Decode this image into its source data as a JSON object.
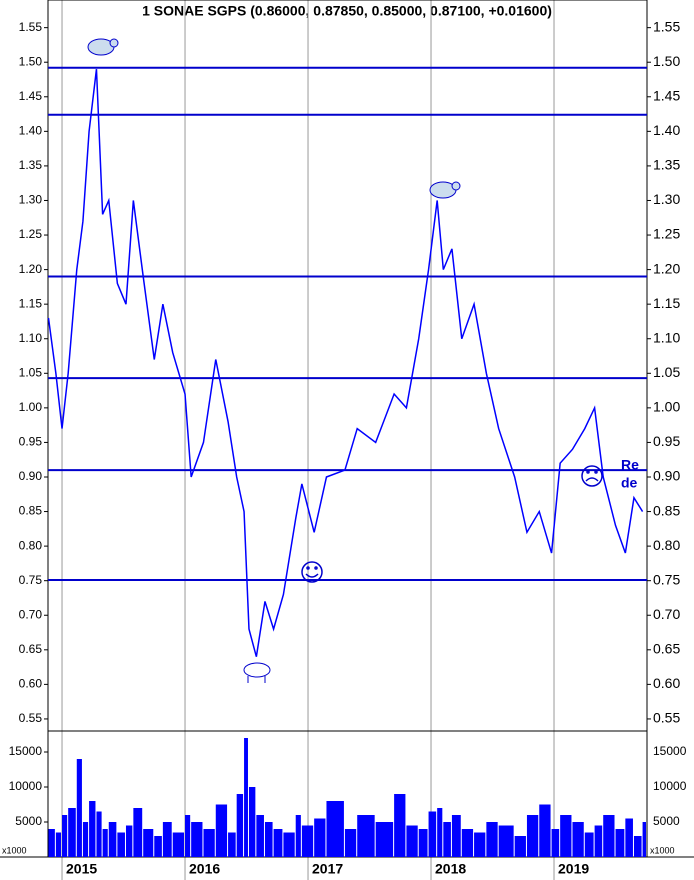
{
  "chart_data": {
    "type": "line",
    "title": "1 SONAE SGPS (0.86000, 0.87850, 0.85000, 0.87100, +0.01600)",
    "color": "#0000ff",
    "level_color": "#0000cc",
    "xlim": [
      2014.886,
      2019.756
    ],
    "xticks": [
      2015,
      2016,
      2017,
      2018,
      2019
    ],
    "ylim": [
      0.534,
      1.59
    ],
    "yticks": [
      {
        "value": 0.55,
        "label": "0.55"
      },
      {
        "value": 0.6,
        "label": "0.60"
      },
      {
        "value": 0.65,
        "label": "0.65"
      },
      {
        "value": 0.7,
        "label": "0.70"
      },
      {
        "value": 0.75,
        "label": "0.75"
      },
      {
        "value": 0.8,
        "label": "0.80"
      },
      {
        "value": 0.85,
        "label": "0.85"
      },
      {
        "value": 0.9,
        "label": "0.90"
      },
      {
        "value": 0.95,
        "label": "0.95"
      },
      {
        "value": 1.0,
        "label": "1.00"
      },
      {
        "value": 1.05,
        "label": "1.05"
      },
      {
        "value": 1.1,
        "label": "1.10"
      },
      {
        "value": 1.15,
        "label": "1.15"
      },
      {
        "value": 1.2,
        "label": "1.20"
      },
      {
        "value": 1.25,
        "label": "1.25"
      },
      {
        "value": 1.3,
        "label": "1.30"
      },
      {
        "value": 1.35,
        "label": "1.35"
      },
      {
        "value": 1.4,
        "label": "1.40"
      },
      {
        "value": 1.45,
        "label": "1.45"
      },
      {
        "value": 1.5,
        "label": "1.50"
      },
      {
        "value": 1.55,
        "label": "1.55"
      }
    ],
    "levels": [
      1.492,
      1.424,
      1.19,
      1.043,
      0.91,
      0.751
    ],
    "annotations": [
      "Re",
      "de"
    ],
    "x": [
      2014.89,
      2014.95,
      2015.0,
      2015.05,
      2015.12,
      2015.17,
      2015.22,
      2015.28,
      2015.33,
      2015.38,
      2015.45,
      2015.52,
      2015.58,
      2015.66,
      2015.75,
      2015.82,
      2015.9,
      2016.0,
      2016.05,
      2016.15,
      2016.25,
      2016.35,
      2016.42,
      2016.48,
      2016.52,
      2016.58,
      2016.65,
      2016.72,
      2016.8,
      2016.9,
      2016.95,
      2017.05,
      2017.15,
      2017.3,
      2017.4,
      2017.55,
      2017.7,
      2017.8,
      2017.9,
      2017.98,
      2018.05,
      2018.1,
      2018.17,
      2018.25,
      2018.35,
      2018.45,
      2018.55,
      2018.68,
      2018.78,
      2018.88,
      2018.98,
      2019.05,
      2019.15,
      2019.25,
      2019.33,
      2019.4,
      2019.5,
      2019.58,
      2019.65,
      2019.72
    ],
    "values": [
      1.13,
      1.05,
      0.97,
      1.05,
      1.2,
      1.27,
      1.4,
      1.49,
      1.28,
      1.3,
      1.18,
      1.15,
      1.3,
      1.19,
      1.07,
      1.15,
      1.08,
      1.02,
      0.9,
      0.95,
      1.07,
      0.98,
      0.9,
      0.85,
      0.68,
      0.64,
      0.72,
      0.68,
      0.73,
      0.84,
      0.89,
      0.82,
      0.9,
      0.91,
      0.97,
      0.95,
      1.02,
      1.0,
      1.1,
      1.2,
      1.3,
      1.2,
      1.23,
      1.1,
      1.15,
      1.05,
      0.97,
      0.9,
      0.82,
      0.85,
      0.79,
      0.92,
      0.94,
      0.97,
      1.0,
      0.9,
      0.83,
      0.79,
      0.87,
      0.85
    ],
    "volume": {
      "unit": "x1000",
      "ylim": [
        0,
        18000
      ],
      "yticks": [
        5000,
        10000,
        15000
      ],
      "values": [
        4000,
        3500,
        6000,
        7000,
        14000,
        5000,
        8000,
        6500,
        4000,
        5000,
        3500,
        4500,
        7000,
        4000,
        3000,
        5000,
        3500,
        6000,
        5000,
        4000,
        7500,
        3500,
        9000,
        17000,
        10000,
        6000,
        5000,
        4000,
        3500,
        6000,
        4500,
        5500,
        8000,
        4000,
        6000,
        5000,
        9000,
        4500,
        4000,
        6500,
        7000,
        5000,
        6000,
        4000,
        3500,
        5000,
        4500,
        3000,
        6000,
        7500,
        4000,
        6000,
        5000,
        3500,
        4500,
        6000,
        4000,
        5500,
        3000,
        5000
      ]
    }
  }
}
